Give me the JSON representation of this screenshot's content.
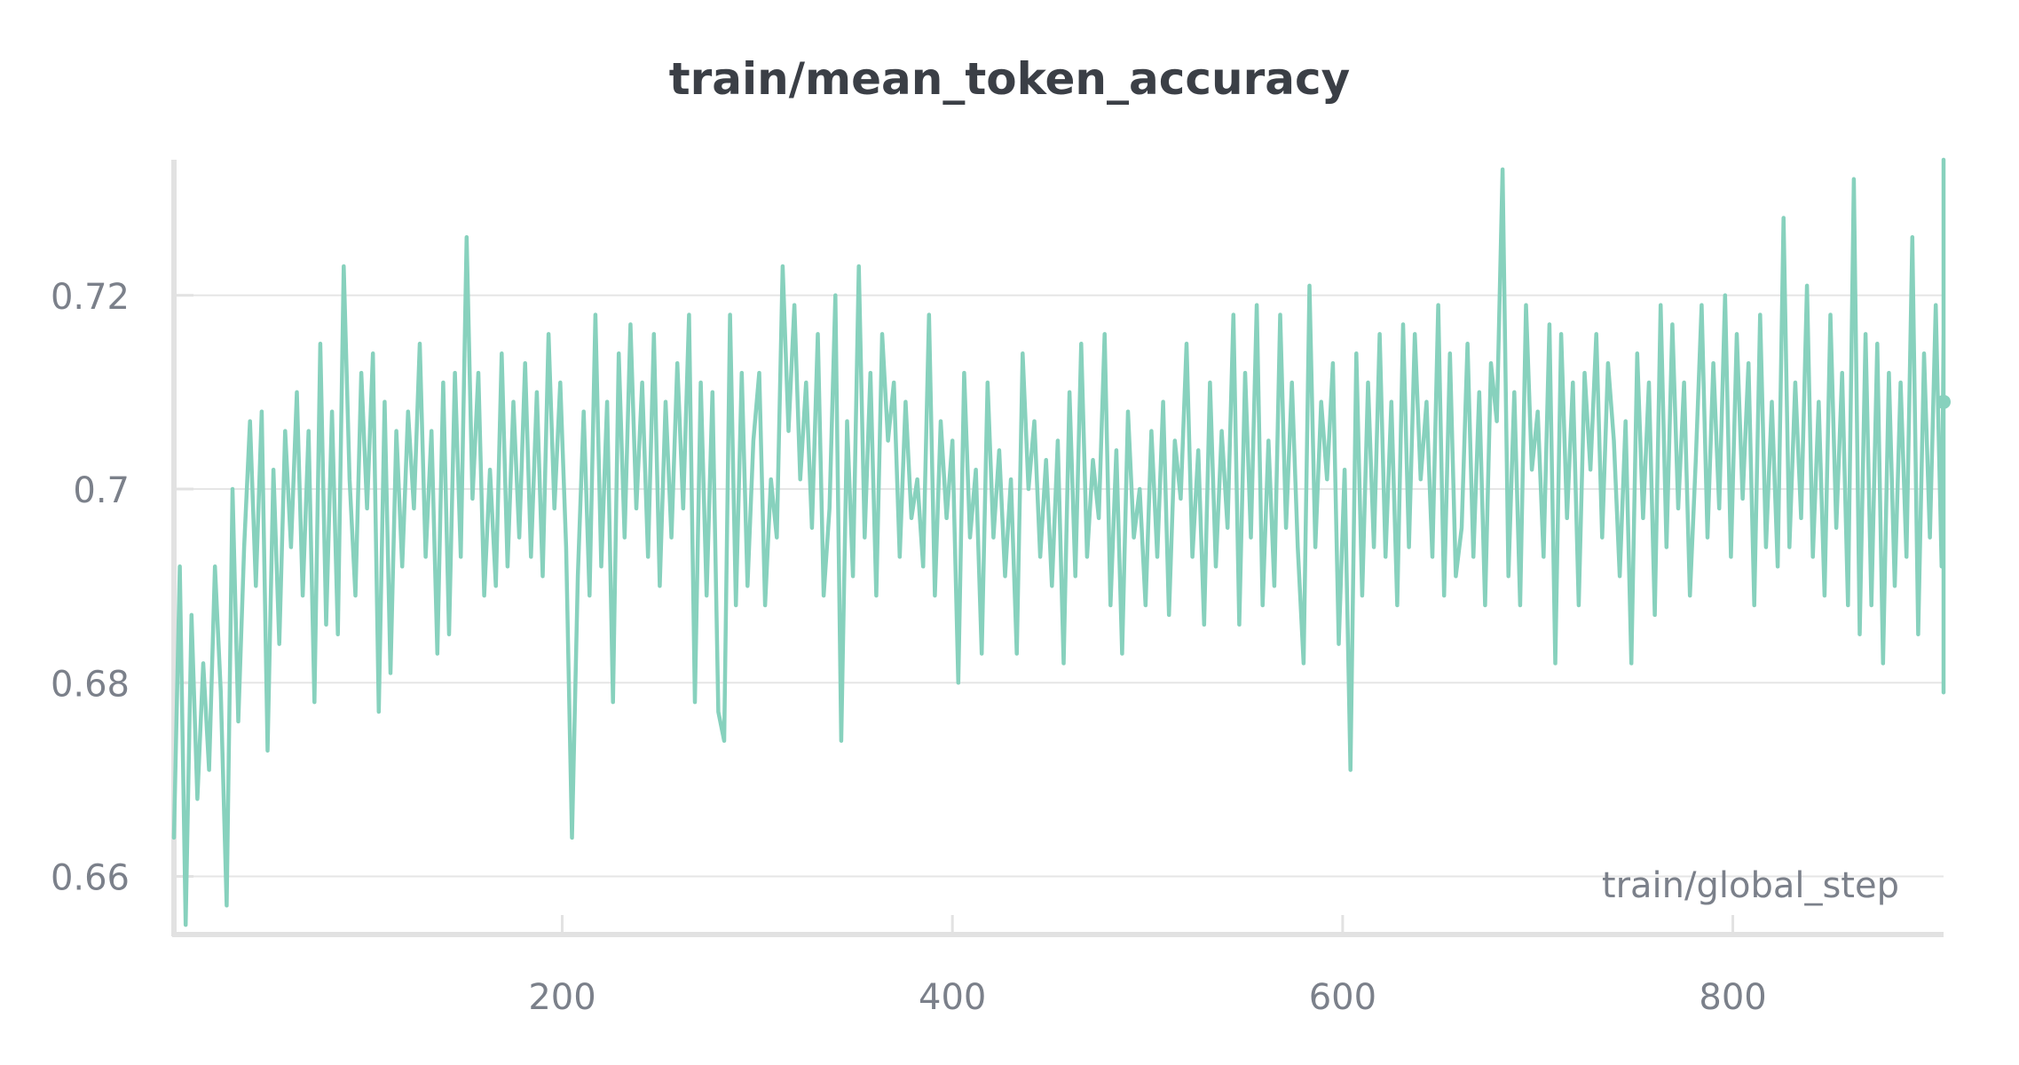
{
  "chart_data": {
    "type": "line",
    "title": "train/mean_token_accuracy",
    "xlabel": "train/global_step",
    "ylabel": "",
    "xlim": [
      1,
      908
    ],
    "ylim": [
      0.654,
      0.734
    ],
    "x_ticks": [
      200,
      400,
      600,
      800
    ],
    "y_ticks": [
      0.66,
      0.68,
      0.7,
      0.72
    ],
    "y_tick_labels": [
      "0.66",
      "0.68",
      "0.7",
      "0.72"
    ],
    "x_tick_labels": [
      "200",
      "400",
      "600",
      "800"
    ],
    "grid": true,
    "legend": "none",
    "series": [
      {
        "color": "#87d1bd",
        "x_start": 1,
        "x_step": 3,
        "values": [
          0.664,
          0.692,
          0.655,
          0.687,
          0.668,
          0.682,
          0.671,
          0.692,
          0.679,
          0.657,
          0.7,
          0.676,
          0.694,
          0.707,
          0.69,
          0.708,
          0.673,
          0.702,
          0.684,
          0.706,
          0.694,
          0.71,
          0.689,
          0.706,
          0.678,
          0.715,
          0.686,
          0.708,
          0.685,
          0.723,
          0.701,
          0.689,
          0.712,
          0.698,
          0.714,
          0.677,
          0.709,
          0.681,
          0.706,
          0.692,
          0.708,
          0.698,
          0.715,
          0.693,
          0.706,
          0.683,
          0.711,
          0.685,
          0.712,
          0.693,
          0.726,
          0.699,
          0.712,
          0.689,
          0.702,
          0.69,
          0.714,
          0.692,
          0.709,
          0.695,
          0.713,
          0.693,
          0.71,
          0.691,
          0.716,
          0.698,
          0.711,
          0.694,
          0.664,
          0.691,
          0.708,
          0.689,
          0.718,
          0.692,
          0.709,
          0.678,
          0.714,
          0.695,
          0.717,
          0.698,
          0.711,
          0.693,
          0.716,
          0.69,
          0.709,
          0.695,
          0.713,
          0.698,
          0.718,
          0.678,
          0.711,
          0.689,
          0.71,
          0.677,
          0.674,
          0.718,
          0.688,
          0.712,
          0.69,
          0.705,
          0.712,
          0.688,
          0.701,
          0.695,
          0.723,
          0.706,
          0.719,
          0.701,
          0.711,
          0.696,
          0.716,
          0.689,
          0.698,
          0.72,
          0.674,
          0.707,
          0.691,
          0.723,
          0.695,
          0.712,
          0.689,
          0.716,
          0.705,
          0.711,
          0.693,
          0.709,
          0.697,
          0.701,
          0.692,
          0.718,
          0.689,
          0.707,
          0.697,
          0.705,
          0.68,
          0.712,
          0.695,
          0.702,
          0.683,
          0.711,
          0.695,
          0.704,
          0.691,
          0.701,
          0.683,
          0.714,
          0.7,
          0.707,
          0.693,
          0.703,
          0.69,
          0.705,
          0.682,
          0.71,
          0.691,
          0.715,
          0.693,
          0.703,
          0.697,
          0.716,
          0.688,
          0.704,
          0.683,
          0.708,
          0.695,
          0.7,
          0.688,
          0.706,
          0.693,
          0.709,
          0.687,
          0.705,
          0.699,
          0.715,
          0.693,
          0.704,
          0.686,
          0.711,
          0.692,
          0.706,
          0.696,
          0.718,
          0.686,
          0.712,
          0.695,
          0.719,
          0.688,
          0.705,
          0.69,
          0.718,
          0.696,
          0.711,
          0.694,
          0.682,
          0.721,
          0.694,
          0.709,
          0.701,
          0.713,
          0.684,
          0.702,
          0.671,
          0.714,
          0.689,
          0.711,
          0.694,
          0.716,
          0.693,
          0.709,
          0.688,
          0.717,
          0.694,
          0.716,
          0.701,
          0.709,
          0.693,
          0.719,
          0.689,
          0.714,
          0.691,
          0.696,
          0.715,
          0.693,
          0.71,
          0.688,
          0.713,
          0.707,
          0.733,
          0.691,
          0.71,
          0.688,
          0.719,
          0.702,
          0.708,
          0.693,
          0.717,
          0.682,
          0.716,
          0.697,
          0.711,
          0.688,
          0.712,
          0.702,
          0.716,
          0.695,
          0.713,
          0.705,
          0.691,
          0.707,
          0.682,
          0.714,
          0.697,
          0.711,
          0.687,
          0.719,
          0.694,
          0.717,
          0.698,
          0.711,
          0.689,
          0.703,
          0.719,
          0.695,
          0.713,
          0.698,
          0.72,
          0.693,
          0.716,
          0.699,
          0.713,
          0.688,
          0.718,
          0.694,
          0.709,
          0.692,
          0.728,
          0.694,
          0.711,
          0.697,
          0.721,
          0.693,
          0.709,
          0.689,
          0.718,
          0.696,
          0.712,
          0.688,
          0.732,
          0.685,
          0.716,
          0.688,
          0.715,
          0.682,
          0.712,
          0.69,
          0.711,
          0.693,
          0.726,
          0.685,
          0.714,
          0.695,
          0.719,
          0.692,
          0.716,
          0.701,
          0.71,
          0.697,
          0.722,
          0.694,
          0.707,
          0.698,
          0.712,
          0.689,
          0.717,
          0.694,
          0.714,
          0.698,
          0.711,
          0.702,
          0.716,
          0.697,
          0.709,
          0.688,
          0.734,
          0.683,
          0.711,
          0.694,
          0.716,
          0.699,
          0.712,
          0.695,
          0.71,
          0.701,
          0.713,
          0.697,
          0.717,
          0.694,
          0.712,
          0.691,
          0.718,
          0.694,
          0.715,
          0.699,
          0.716,
          0.693,
          0.711,
          0.685,
          0.717,
          0.694,
          0.719,
          0.688,
          0.708,
          0.693,
          0.712,
          0.682,
          0.716,
          0.698,
          0.715,
          0.702,
          0.711,
          0.693,
          0.719,
          0.679,
          0.714,
          0.686,
          0.718,
          0.692,
          0.72,
          0.709
        ]
      }
    ]
  }
}
